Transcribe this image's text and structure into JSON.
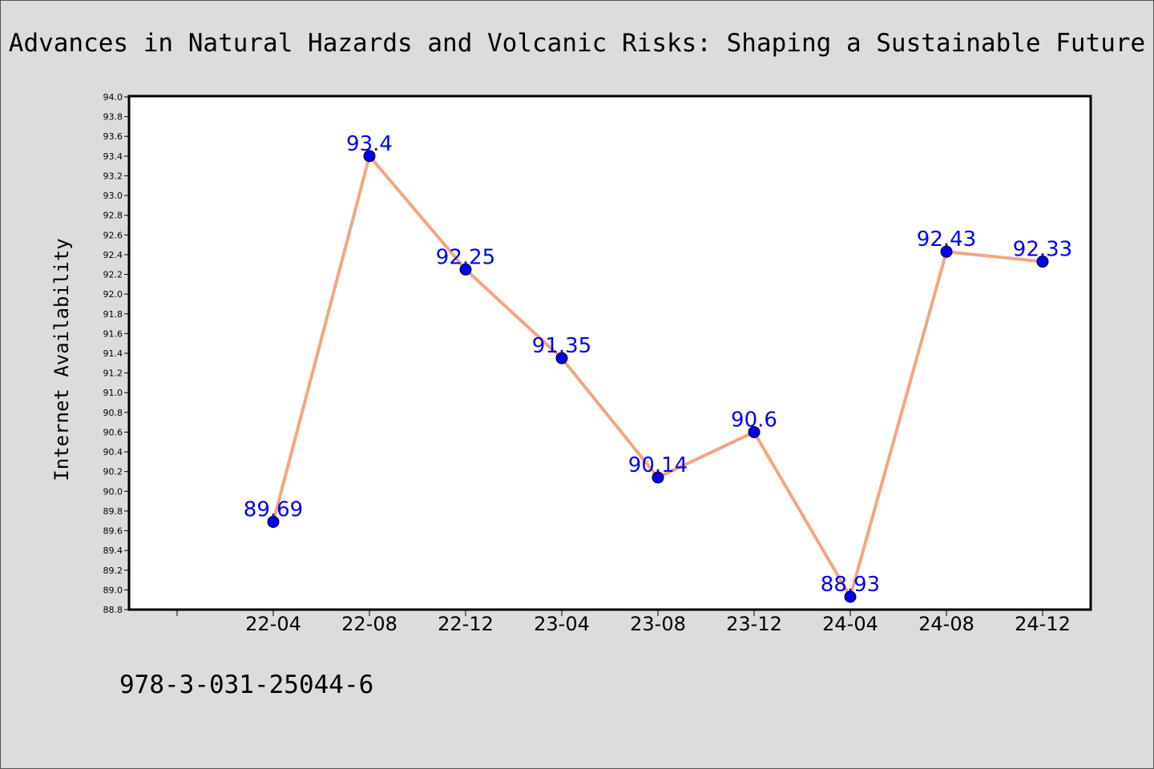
{
  "chart_data": {
    "type": "line",
    "title": "Advances in Natural Hazards and Volcanic Risks: Shaping a Sustainable Future",
    "xlabel": "",
    "ylabel": "Internet Availability",
    "categories": [
      "22-04",
      "22-08",
      "22-12",
      "23-04",
      "23-08",
      "23-12",
      "24-04",
      "24-08",
      "24-12"
    ],
    "series": [
      {
        "values": [
          89.69,
          93.4,
          92.25,
          91.35,
          90.14,
          90.6,
          88.93,
          92.43,
          92.33
        ],
        "line_color": "#f4a582",
        "marker_color": "#0000ee"
      }
    ],
    "data_labels": [
      "89.69",
      "93.4",
      "92.25",
      "91.35",
      "90.14",
      "90.6",
      "88.93",
      "92.43",
      "92.33"
    ],
    "ylim": [
      88.8,
      94.0
    ],
    "yticks": [
      "88.8",
      "89.0",
      "89.2",
      "89.4",
      "89.6",
      "89.8",
      "90.0",
      "90.2",
      "90.4",
      "90.6",
      "90.8",
      "91.0",
      "91.2",
      "91.4",
      "91.6",
      "91.8",
      "92.0",
      "92.2",
      "92.4",
      "92.6",
      "92.8",
      "93.0",
      "93.2",
      "93.4",
      "93.6",
      "93.8",
      "94.0"
    ],
    "grid": false,
    "legend": "none"
  },
  "footer": {
    "isbn": "978-3-031-25044-6"
  }
}
